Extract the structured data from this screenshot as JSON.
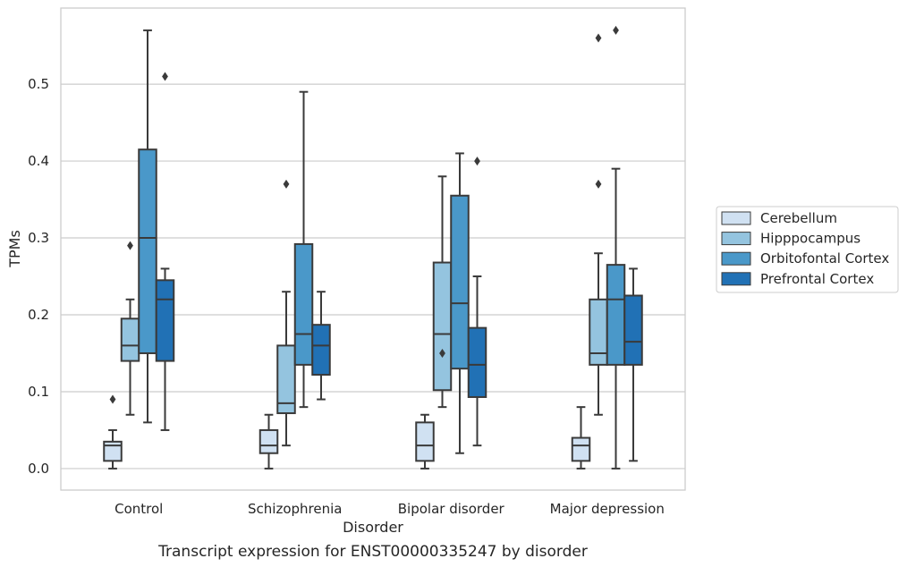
{
  "chart_data": {
    "type": "box",
    "caption": "Transcript expression for ENST00000335247 by disorder",
    "xlabel": "Disorder",
    "ylabel": "TPMs",
    "ylim": [
      -0.028,
      0.599
    ],
    "yticks": [
      0.0,
      0.1,
      0.2,
      0.3,
      0.4,
      0.5
    ],
    "ytick_labels": [
      "0.0",
      "0.1",
      "0.2",
      "0.3",
      "0.4",
      "0.5"
    ],
    "grid": true,
    "legend_position": "right",
    "categories": [
      "Control",
      "Schizophrenia",
      "Bipolar disorder",
      "Major depression"
    ],
    "series": [
      {
        "name": "Cerebellum",
        "color": "#d0e1f2",
        "boxes": [
          {
            "whislo": 0.0,
            "q1": 0.01,
            "med": 0.03,
            "q3": 0.035,
            "whishi": 0.05,
            "fliers": [
              0.09
            ]
          },
          {
            "whislo": 0.0,
            "q1": 0.02,
            "med": 0.03,
            "q3": 0.05,
            "whishi": 0.07,
            "fliers": []
          },
          {
            "whislo": 0.0,
            "q1": 0.01,
            "med": 0.03,
            "q3": 0.06,
            "whishi": 0.07,
            "fliers": []
          },
          {
            "whislo": 0.0,
            "q1": 0.01,
            "med": 0.03,
            "q3": 0.04,
            "whishi": 0.08,
            "fliers": []
          }
        ]
      },
      {
        "name": "Hipppocampus",
        "color": "#94c4df",
        "boxes": [
          {
            "whislo": 0.07,
            "q1": 0.14,
            "med": 0.16,
            "q3": 0.195,
            "whishi": 0.22,
            "fliers": [
              0.29
            ]
          },
          {
            "whislo": 0.03,
            "q1": 0.072,
            "med": 0.085,
            "q3": 0.16,
            "whishi": 0.23,
            "fliers": [
              0.37
            ]
          },
          {
            "whislo": 0.08,
            "q1": 0.102,
            "med": 0.175,
            "q3": 0.268,
            "whishi": 0.38,
            "fliers": [
              0.15
            ]
          },
          {
            "whislo": 0.07,
            "q1": 0.135,
            "med": 0.15,
            "q3": 0.22,
            "whishi": 0.28,
            "fliers": [
              0.37,
              0.56
            ]
          }
        ]
      },
      {
        "name": "Orbitofontal Cortex",
        "color": "#4a98c9",
        "boxes": [
          {
            "whislo": 0.06,
            "q1": 0.15,
            "med": 0.3,
            "q3": 0.415,
            "whishi": 0.57,
            "fliers": []
          },
          {
            "whislo": 0.08,
            "q1": 0.135,
            "med": 0.175,
            "q3": 0.292,
            "whishi": 0.49,
            "fliers": []
          },
          {
            "whislo": 0.02,
            "q1": 0.13,
            "med": 0.215,
            "q3": 0.355,
            "whishi": 0.41,
            "fliers": []
          },
          {
            "whislo": 0.0,
            "q1": 0.135,
            "med": 0.22,
            "q3": 0.265,
            "whishi": 0.39,
            "fliers": [
              0.57
            ]
          }
        ]
      },
      {
        "name": "Prefrontal Cortex",
        "color": "#2171b5",
        "boxes": [
          {
            "whislo": 0.05,
            "q1": 0.14,
            "med": 0.22,
            "q3": 0.245,
            "whishi": 0.26,
            "fliers": [
              0.51
            ]
          },
          {
            "whislo": 0.09,
            "q1": 0.122,
            "med": 0.16,
            "q3": 0.187,
            "whishi": 0.23,
            "fliers": []
          },
          {
            "whislo": 0.03,
            "q1": 0.093,
            "med": 0.135,
            "q3": 0.183,
            "whishi": 0.25,
            "fliers": [
              0.4
            ]
          },
          {
            "whislo": 0.01,
            "q1": 0.135,
            "med": 0.165,
            "q3": 0.225,
            "whishi": 0.26,
            "fliers": []
          }
        ]
      }
    ]
  }
}
